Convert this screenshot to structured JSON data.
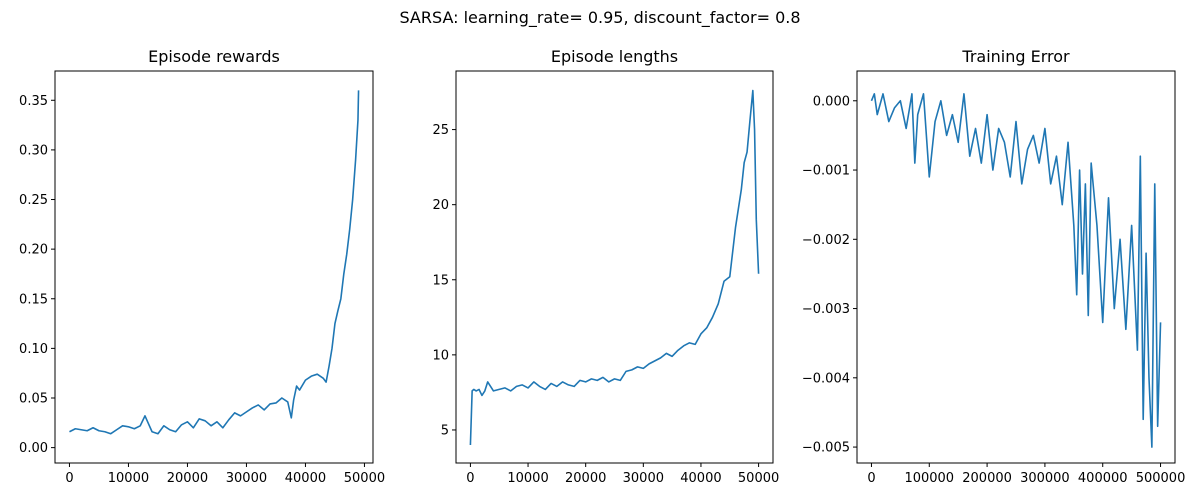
{
  "figure_title": "SARSA: learning_rate= 0.95, discount_factor= 0.8",
  "colors": {
    "line": "#1f77b4",
    "axis": "#000000",
    "background": "#ffffff"
  },
  "chart_data": [
    {
      "id": "rewards",
      "type": "line",
      "title": "Episode rewards",
      "xlabel": "",
      "ylabel": "",
      "xlim": [
        -2450,
        51450
      ],
      "ylim": [
        -0.0155,
        0.3795
      ],
      "xticks": [
        0,
        10000,
        20000,
        30000,
        40000,
        50000
      ],
      "xtick_labels": [
        "0",
        "10000",
        "20000",
        "30000",
        "40000",
        "50000"
      ],
      "yticks": [
        0.0,
        0.05,
        0.1,
        0.15,
        0.2,
        0.25,
        0.3,
        0.35
      ],
      "ytick_labels": [
        "0.00",
        "0.05",
        "0.10",
        "0.15",
        "0.20",
        "0.25",
        "0.30",
        "0.35"
      ],
      "series": [
        {
          "name": "Episode rewards",
          "x": [
            0,
            1000,
            2000,
            3000,
            4000,
            5000,
            6000,
            7000,
            8000,
            9000,
            10000,
            11000,
            12000,
            12800,
            13400,
            14000,
            15000,
            16000,
            17000,
            18000,
            19000,
            20000,
            21000,
            22000,
            23000,
            24000,
            25000,
            26000,
            27000,
            28000,
            29000,
            30000,
            31000,
            32000,
            33000,
            34000,
            35000,
            36000,
            37000,
            37600,
            38000,
            38500,
            39000,
            40000,
            41000,
            42000,
            43000,
            43500,
            44000,
            44500,
            45000,
            45500,
            46000,
            46500,
            47000,
            47500,
            48000,
            48500,
            48900,
            49000
          ],
          "y": [
            0.016,
            0.019,
            0.018,
            0.017,
            0.02,
            0.017,
            0.016,
            0.014,
            0.018,
            0.022,
            0.021,
            0.019,
            0.022,
            0.032,
            0.024,
            0.016,
            0.014,
            0.022,
            0.018,
            0.016,
            0.023,
            0.026,
            0.02,
            0.029,
            0.027,
            0.022,
            0.026,
            0.02,
            0.028,
            0.035,
            0.032,
            0.036,
            0.04,
            0.043,
            0.038,
            0.044,
            0.045,
            0.05,
            0.046,
            0.03,
            0.048,
            0.062,
            0.058,
            0.068,
            0.072,
            0.074,
            0.07,
            0.066,
            0.082,
            0.1,
            0.125,
            0.138,
            0.15,
            0.175,
            0.195,
            0.22,
            0.25,
            0.29,
            0.33,
            0.36
          ]
        }
      ]
    },
    {
      "id": "lengths",
      "type": "line",
      "title": "Episode lengths",
      "xlabel": "",
      "ylabel": "",
      "xlim": [
        -2500,
        52500
      ],
      "ylim": [
        2.8,
        28.9
      ],
      "xticks": [
        0,
        10000,
        20000,
        30000,
        40000,
        50000
      ],
      "xtick_labels": [
        "0",
        "10000",
        "20000",
        "30000",
        "40000",
        "50000"
      ],
      "yticks": [
        5,
        10,
        15,
        20,
        25
      ],
      "ytick_labels": [
        "5",
        "10",
        "15",
        "20",
        "25"
      ],
      "series": [
        {
          "name": "Episode lengths",
          "x": [
            0,
            300,
            600,
            1000,
            1500,
            2000,
            2500,
            3000,
            3500,
            4000,
            5000,
            6000,
            7000,
            8000,
            9000,
            10000,
            11000,
            12000,
            13000,
            14000,
            15000,
            16000,
            17000,
            18000,
            19000,
            20000,
            21000,
            22000,
            23000,
            24000,
            25000,
            26000,
            27000,
            28000,
            29000,
            30000,
            31000,
            32000,
            33000,
            34000,
            35000,
            36000,
            37000,
            38000,
            39000,
            40000,
            41000,
            42000,
            43000,
            44000,
            45000,
            46000,
            47000,
            47500,
            48000,
            48500,
            49000,
            49300,
            49600,
            50000
          ],
          "y": [
            4.0,
            7.6,
            7.7,
            7.6,
            7.7,
            7.3,
            7.6,
            8.2,
            7.9,
            7.6,
            7.7,
            7.8,
            7.6,
            7.9,
            8.0,
            7.8,
            8.2,
            7.9,
            7.7,
            8.1,
            7.9,
            8.2,
            8.0,
            7.9,
            8.3,
            8.2,
            8.4,
            8.3,
            8.5,
            8.2,
            8.4,
            8.3,
            8.9,
            9.0,
            9.2,
            9.1,
            9.4,
            9.6,
            9.8,
            10.1,
            9.9,
            10.3,
            10.6,
            10.8,
            10.7,
            11.4,
            11.8,
            12.5,
            13.4,
            14.9,
            15.2,
            18.5,
            21.0,
            22.8,
            23.5,
            25.6,
            27.6,
            25.0,
            19.0,
            15.4
          ]
        }
      ]
    },
    {
      "id": "training_error",
      "type": "line",
      "title": "Training Error",
      "xlabel": "",
      "ylabel": "",
      "xlim": [
        -25000,
        525000
      ],
      "ylim": [
        -0.00523,
        0.00043
      ],
      "xticks": [
        0,
        100000,
        200000,
        300000,
        400000,
        500000
      ],
      "xtick_labels": [
        "0",
        "100000",
        "200000",
        "300000",
        "400000",
        "500000"
      ],
      "yticks": [
        0.0,
        -0.001,
        -0.002,
        -0.003,
        -0.004,
        -0.005
      ],
      "ytick_labels": [
        "0.000",
        "−0.001",
        "−0.002",
        "−0.003",
        "−0.004",
        "−0.005"
      ],
      "series": [
        {
          "name": "Training error",
          "x": [
            0,
            5000,
            10000,
            20000,
            30000,
            40000,
            50000,
            60000,
            70000,
            75000,
            80000,
            90000,
            100000,
            110000,
            120000,
            130000,
            140000,
            150000,
            160000,
            170000,
            180000,
            190000,
            200000,
            210000,
            220000,
            230000,
            240000,
            250000,
            260000,
            270000,
            280000,
            290000,
            300000,
            310000,
            320000,
            330000,
            340000,
            350000,
            355000,
            360000,
            365000,
            370000,
            375000,
            380000,
            390000,
            400000,
            410000,
            420000,
            430000,
            440000,
            450000,
            460000,
            465000,
            470000,
            475000,
            480000,
            485000,
            490000,
            495000,
            500000
          ],
          "y": [
            0.0,
            0.0001,
            -0.0002,
            0.0001,
            -0.0003,
            -0.0001,
            0.0,
            -0.0004,
            0.0001,
            -0.0009,
            -0.0002,
            0.0001,
            -0.0011,
            -0.0003,
            0.0,
            -0.0005,
            -0.0002,
            -0.0006,
            0.0001,
            -0.0008,
            -0.0004,
            -0.0009,
            -0.0002,
            -0.001,
            -0.0004,
            -0.0006,
            -0.0011,
            -0.0003,
            -0.0012,
            -0.0007,
            -0.0005,
            -0.0009,
            -0.0004,
            -0.0012,
            -0.0008,
            -0.0015,
            -0.0006,
            -0.0018,
            -0.0028,
            -0.001,
            -0.0025,
            -0.0012,
            -0.0031,
            -0.0009,
            -0.0018,
            -0.0032,
            -0.0014,
            -0.003,
            -0.002,
            -0.0033,
            -0.0018,
            -0.0036,
            -0.0008,
            -0.0046,
            -0.0022,
            -0.004,
            -0.005,
            -0.0012,
            -0.0047,
            -0.0032
          ]
        }
      ]
    }
  ]
}
